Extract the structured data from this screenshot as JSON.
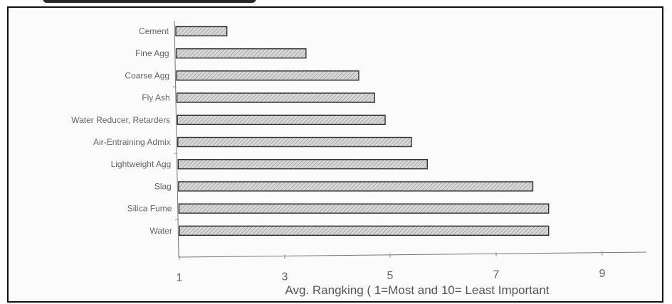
{
  "chart_data": {
    "type": "bar",
    "orientation": "horizontal",
    "categories": [
      "Cement",
      "Fine Agg",
      "Coarse Agg",
      "Fly Ash",
      "Water Reducer, Retarders",
      "Air-Entraining Admix",
      "Lightweight Agg",
      "Slag",
      "Silica Fume",
      "Water"
    ],
    "values": [
      1.9,
      3.4,
      4.4,
      4.7,
      4.9,
      5.4,
      5.7,
      7.7,
      8.0,
      8.0
    ],
    "xlabel": "Avg. Rangking ( 1=Most and 10= Least Important",
    "ylabel": "",
    "xticks": [
      "1",
      "3",
      "5",
      "7",
      "9"
    ],
    "xlim": [
      1,
      10
    ],
    "grid": false,
    "bar_fill": "#d6d6d6",
    "bar_hatch_color": "#8a8a8a",
    "bar_edge_color": "#333333"
  }
}
